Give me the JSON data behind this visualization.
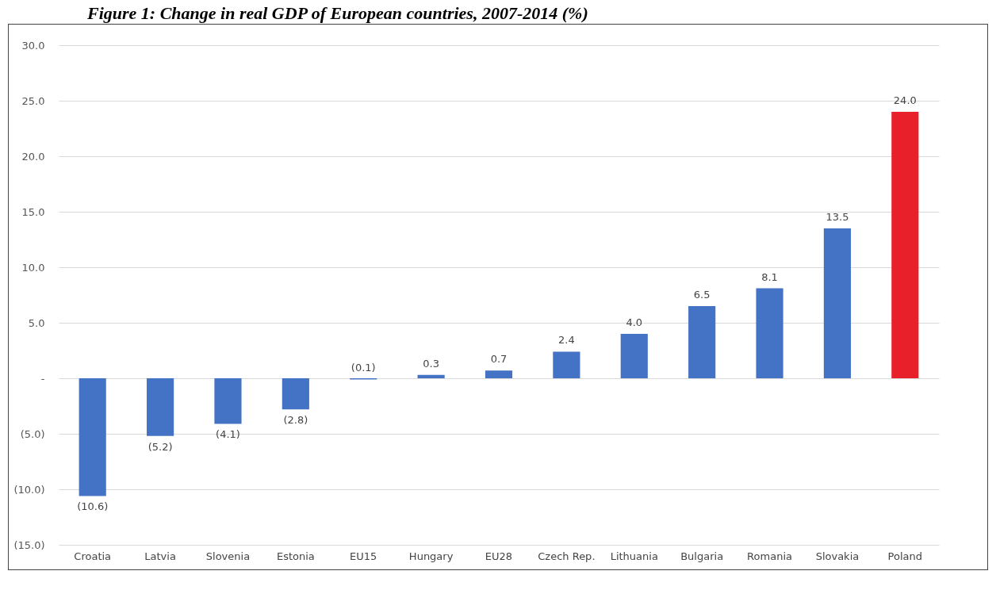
{
  "chart_data": {
    "type": "bar",
    "title": "Figure 1: Change in real GDP of European countries, 2007-2014 (%)",
    "categories": [
      "Croatia",
      "Latvia",
      "Slovenia",
      "Estonia",
      "EU15",
      "Hungary",
      "EU28",
      "Czech Rep.",
      "Lithuania",
      "Bulgaria",
      "Romania",
      "Slovakia",
      "Poland"
    ],
    "values": [
      -10.6,
      -5.2,
      -4.1,
      -2.8,
      -0.1,
      0.3,
      0.7,
      2.4,
      4.0,
      6.5,
      8.1,
      13.5,
      24.0
    ],
    "value_labels": [
      "(10.6)",
      "(5.2)",
      "(4.1)",
      "(2.8)",
      "(0.1)",
      "0.3",
      "0.7",
      "2.4",
      "4.0",
      "6.5",
      "8.1",
      "13.5",
      "24.0"
    ],
    "colors": [
      "#4472c4",
      "#4472c4",
      "#4472c4",
      "#4472c4",
      "#4472c4",
      "#4472c4",
      "#4472c4",
      "#4472c4",
      "#4472c4",
      "#4472c4",
      "#4472c4",
      "#4472c4",
      "#e8202a"
    ],
    "ylim": [
      -15,
      30
    ],
    "yticks": [
      {
        "value": -15,
        "label": "(15.0)"
      },
      {
        "value": -10,
        "label": "(10.0)"
      },
      {
        "value": -5,
        "label": "(5.0)"
      },
      {
        "value": 0,
        "label": "-"
      },
      {
        "value": 5,
        "label": "5.0"
      },
      {
        "value": 10,
        "label": "10.0"
      },
      {
        "value": 15,
        "label": "15.0"
      },
      {
        "value": 20,
        "label": "20.0"
      },
      {
        "value": 25,
        "label": "25.0"
      },
      {
        "value": 30,
        "label": "30.0"
      }
    ],
    "grid": "y"
  }
}
